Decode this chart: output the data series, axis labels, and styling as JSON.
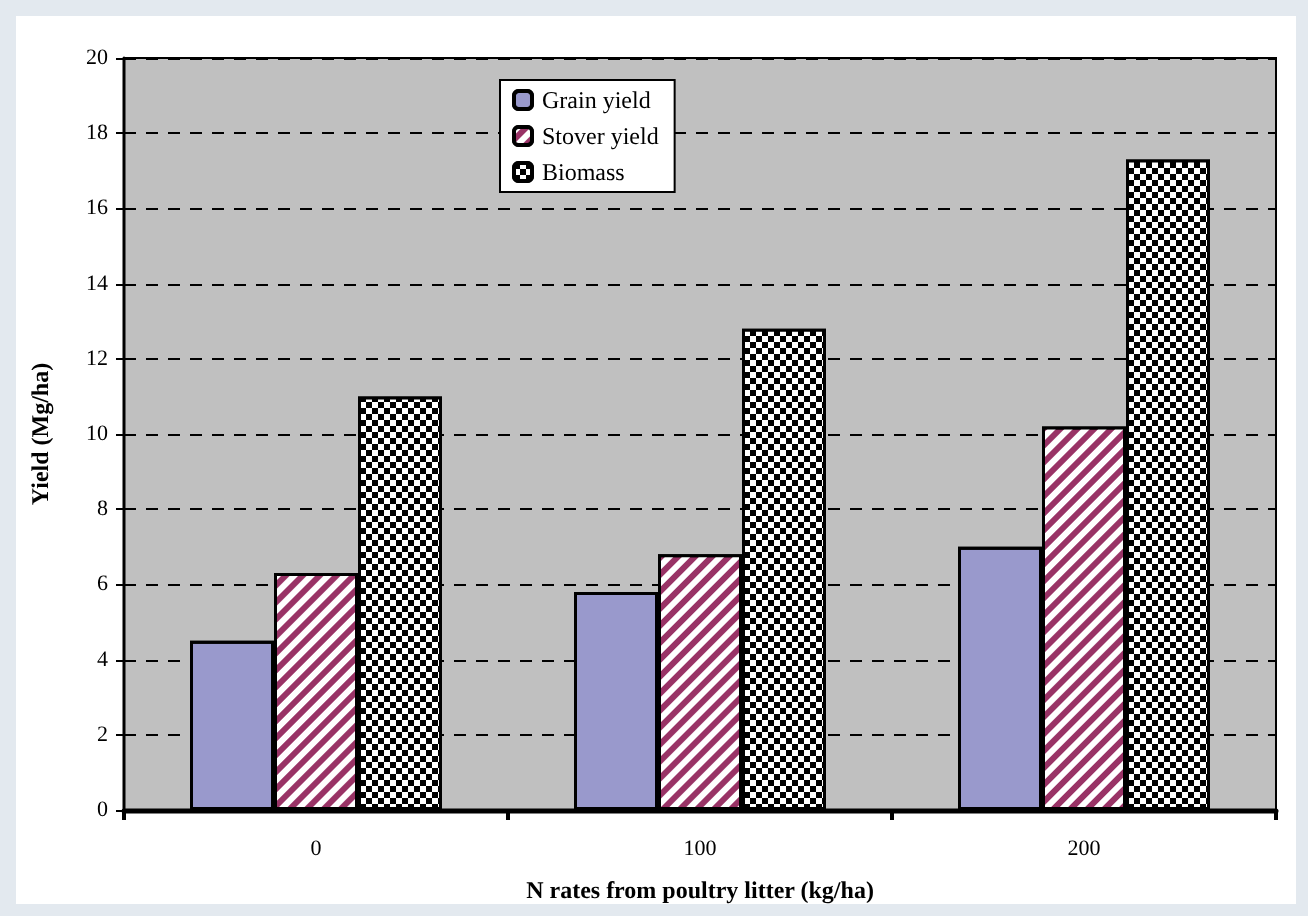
{
  "chart_data": {
    "type": "bar",
    "xlabel": "N rates from poultry litter (kg/ha)",
    "ylabel": "Yield (Mg/ha)",
    "categories": [
      "0",
      "100",
      "200"
    ],
    "series": [
      {
        "name": "Grain yield",
        "color": "#9999cc",
        "values": [
          4.5,
          5.8,
          7.0
        ]
      },
      {
        "name": "Stover yield",
        "color": "#993366",
        "values": [
          6.3,
          6.8,
          10.2
        ]
      },
      {
        "name": "Biomass",
        "color": "#000000",
        "values": [
          11.0,
          12.8,
          17.3
        ]
      }
    ],
    "ylim": [
      0,
      20
    ],
    "yticks": [
      0,
      2,
      4,
      6,
      8,
      10,
      12,
      14,
      16,
      18,
      20
    ],
    "grid": "y",
    "legend": "top"
  }
}
